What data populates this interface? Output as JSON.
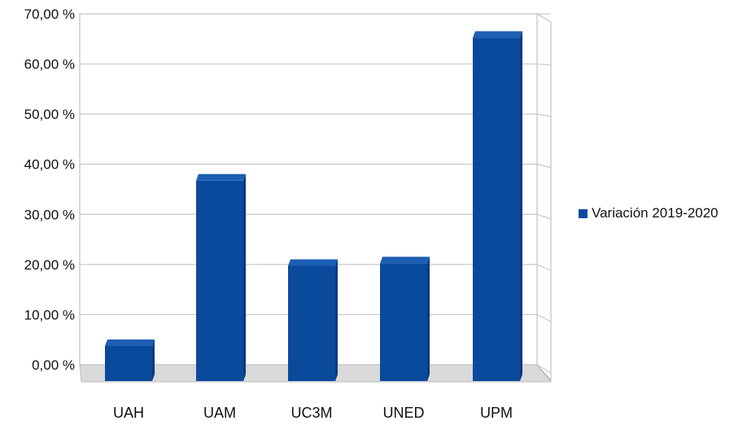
{
  "chart_data": {
    "type": "bar",
    "categories": [
      "UAH",
      "UAM",
      "UC3M",
      "UNED",
      "UPM"
    ],
    "series": [
      {
        "name": "Variación 2019-2020",
        "values": [
          6.5,
          39.5,
          22.5,
          23.0,
          68.0
        ],
        "color": "#0a4a9c"
      }
    ],
    "y_ticks": [
      "0,00 %",
      "10,00 %",
      "20,00 %",
      "30,00 %",
      "40,00 %",
      "50,00 %",
      "60,00 %",
      "70,00 %"
    ],
    "ylim": [
      0,
      70
    ],
    "grid": true,
    "style": "3d",
    "legend_position": "right",
    "colors": {
      "bar": "#0a4a9c",
      "bar_top": "#1d5fb3",
      "bar_side": "#083a7c",
      "floor": "#d9d9d9",
      "grid": "#c8c8c8"
    }
  }
}
